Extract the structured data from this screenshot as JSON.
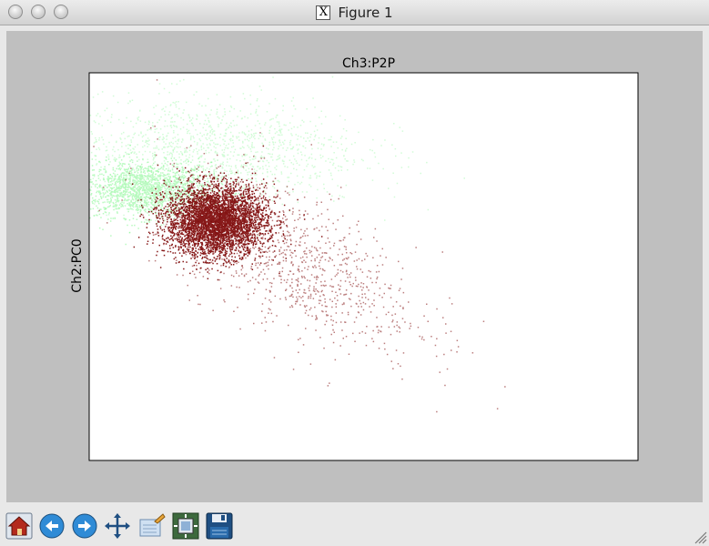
{
  "window": {
    "title": "Figure 1",
    "title_icon": "x11-icon"
  },
  "toolbar": {
    "buttons": [
      {
        "name": "home-button",
        "icon": "home-icon"
      },
      {
        "name": "back-button",
        "icon": "arrow-left-icon"
      },
      {
        "name": "forward-button",
        "icon": "arrow-right-icon"
      },
      {
        "name": "pan-button",
        "icon": "move-arrows-icon"
      },
      {
        "name": "zoom-button",
        "icon": "zoom-rect-icon"
      },
      {
        "name": "subplots-button",
        "icon": "subplots-icon"
      },
      {
        "name": "save-button",
        "icon": "floppy-disk-icon"
      }
    ]
  },
  "colors": {
    "green": "#7ff58c",
    "red": "#7a0000",
    "canvas": "#bfbfbf"
  },
  "chart_data": {
    "type": "scatter",
    "title": "Ch3:P2P",
    "xlabel": "",
    "ylabel": "Ch2:PC0",
    "xticks": "hidden",
    "yticks": "hidden",
    "grid": false,
    "series": [
      {
        "color": "#7ff58c",
        "point_count_estimate": 9000,
        "clusters": [
          {
            "center": [
              0.1,
              0.7
            ],
            "spread": [
              0.06,
              0.035
            ],
            "share": 0.55
          },
          {
            "center": [
              0.22,
              0.8
            ],
            "spread": [
              0.14,
              0.07
            ],
            "share": 0.45
          }
        ]
      },
      {
        "color": "#7a0000",
        "point_count_estimate": 16000,
        "clusters": [
          {
            "center": [
              0.23,
              0.62
            ],
            "spread": [
              0.045,
              0.045
            ],
            "share": 0.8
          },
          {
            "center": [
              0.36,
              0.52
            ],
            "spread": [
              0.12,
              0.09
            ],
            "share": 0.2
          }
        ]
      }
    ]
  }
}
